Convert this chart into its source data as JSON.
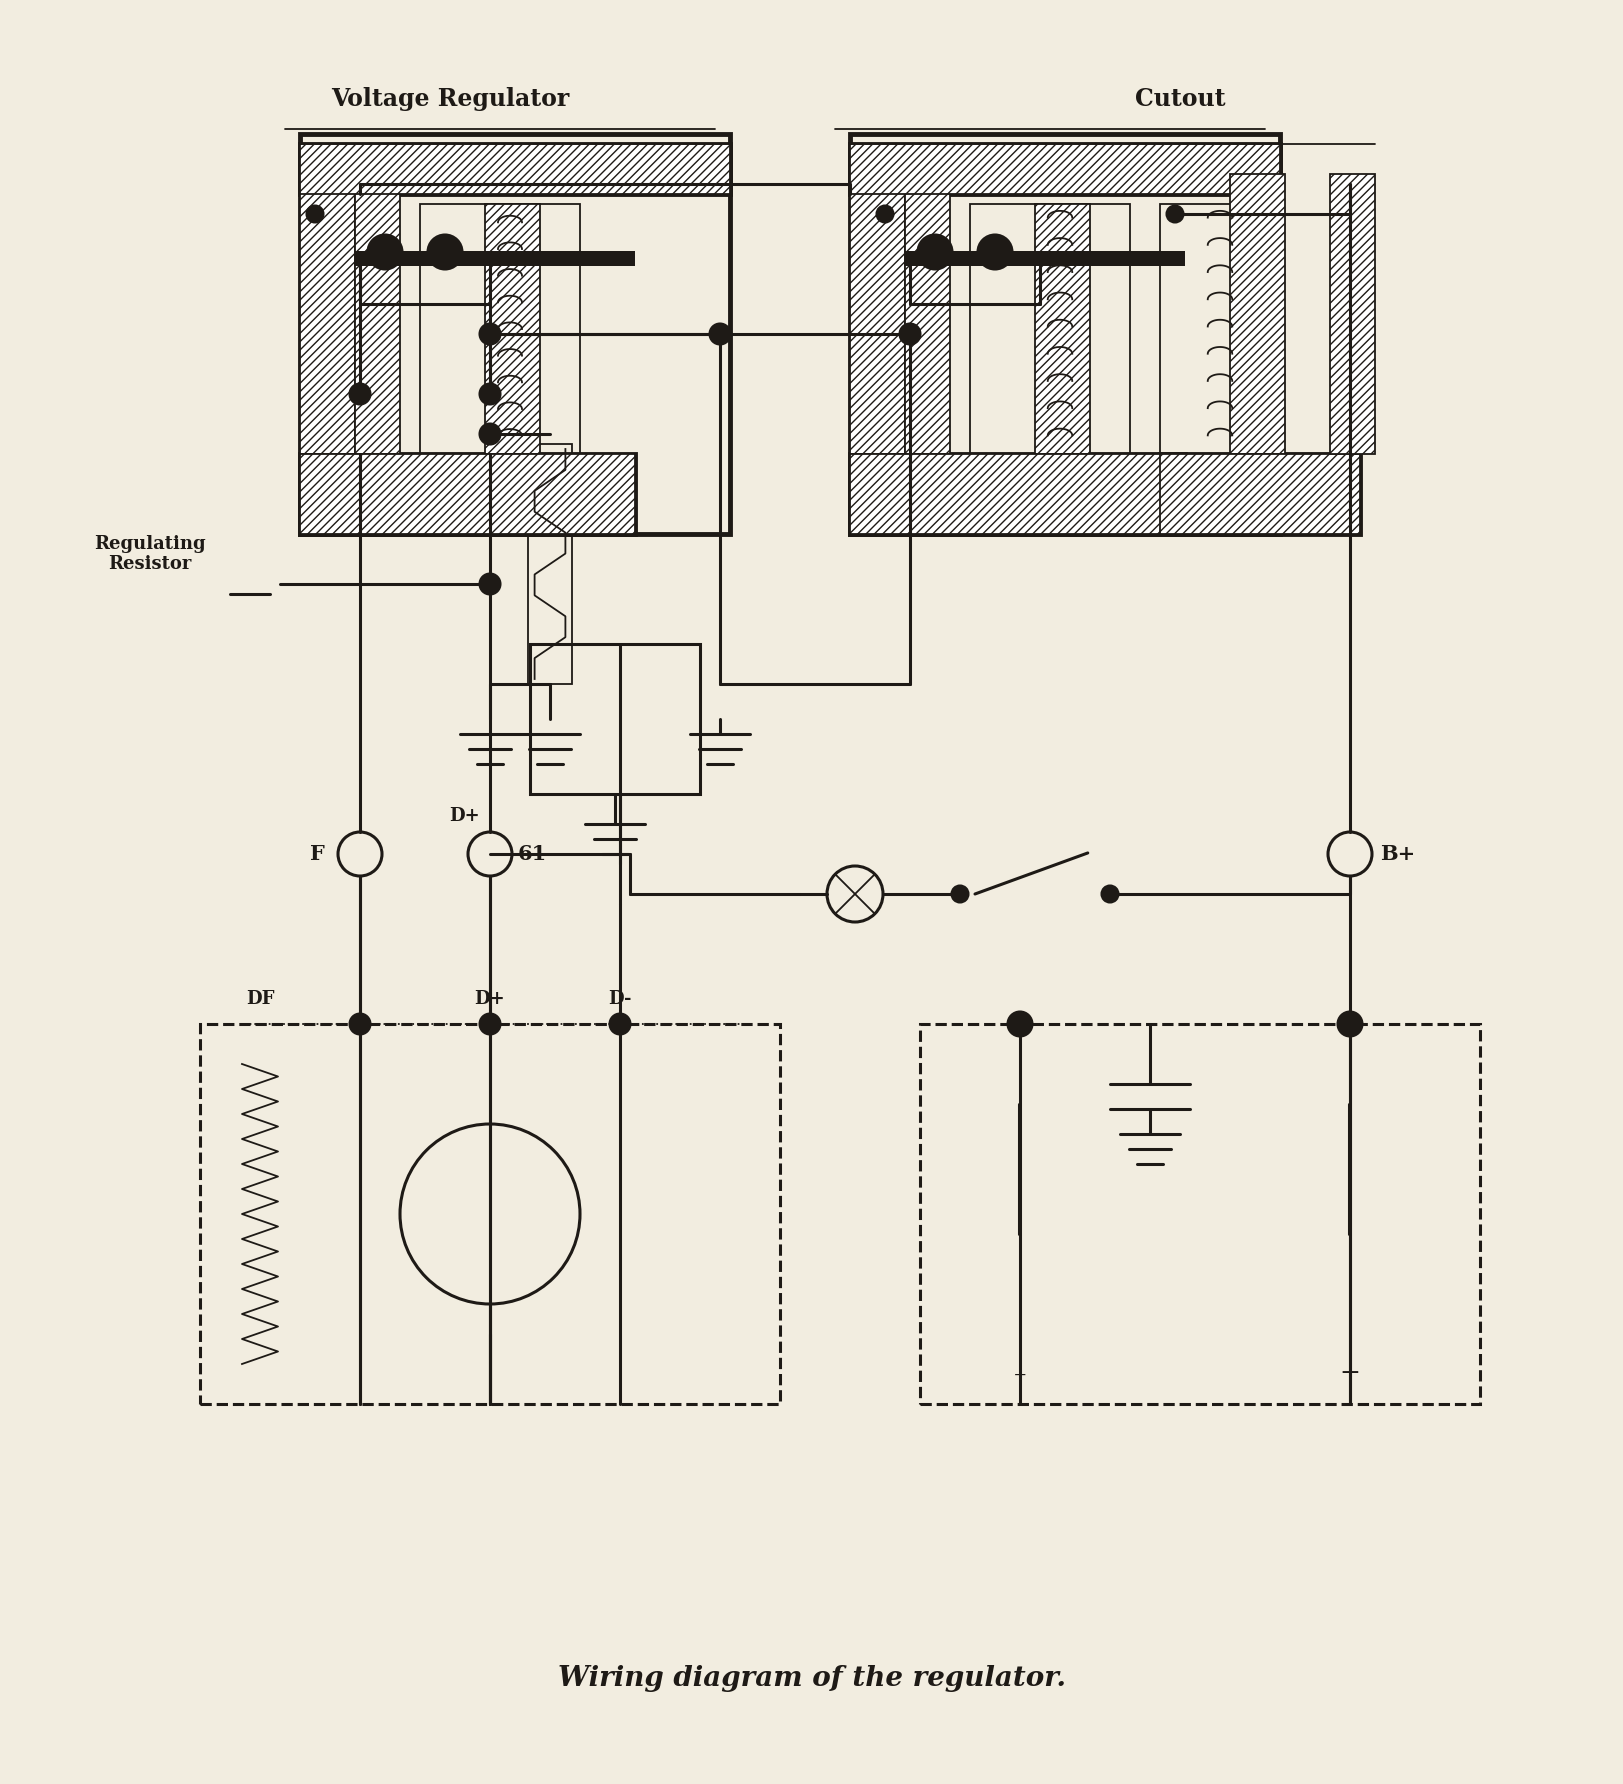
{
  "bg_color": "#f2ede0",
  "line_color": "#1e1a16",
  "title": "Wiring diagram of the regulator.",
  "label_voltage_regulator": "Voltage Regulator",
  "label_cutout": "Cutout",
  "label_regulating_resistor": "Regulating\nResistor",
  "label_F": "F",
  "label_D_plus": "D+",
  "label_61": "61",
  "label_B_plus": "B+",
  "label_DF": "DF",
  "label_D_plus_alt": "D+",
  "label_D_minus": "D-",
  "figsize": [
    16.24,
    17.84
  ],
  "dpi": 100,
  "lw_main": 2.2,
  "lw_thick": 3.5,
  "lw_thin": 1.3
}
